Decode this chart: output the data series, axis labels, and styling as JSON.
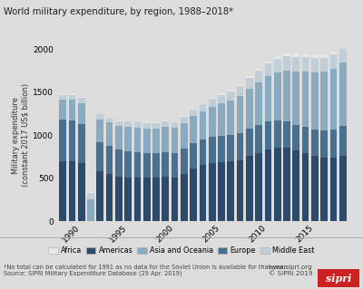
{
  "title": "World military expenditure, by region, 1988–2018*",
  "ylabel": "Military expenditure\n(constant 2017 US$ billion)",
  "background_color": "#dcdcdc",
  "plot_bg_color": "#dcdcdc",
  "footer_note": "*No total can be calculated for 1991 as no data for the Soviet Union is available for that year\nSource: SIPRI Military Expenditure Database (29 Apr. 2019)",
  "footer_right": "www.sipri.org\n© SIPRI 2019",
  "years": [
    1988,
    1989,
    1990,
    1991,
    1992,
    1993,
    1994,
    1995,
    1996,
    1997,
    1998,
    1999,
    2000,
    2001,
    2002,
    2003,
    2004,
    2005,
    2006,
    2007,
    2008,
    2009,
    2010,
    2011,
    2012,
    2013,
    2014,
    2015,
    2016,
    2017,
    2018
  ],
  "regions": [
    "Americas",
    "Europe",
    "Asia and Oceania",
    "Middle East",
    "Africa"
  ],
  "colors": [
    "#2e4a6b",
    "#4a7090",
    "#8aaabf",
    "#c0ced8",
    "#e8e8e6"
  ],
  "data": {
    "Americas": [
      700,
      695,
      670,
      0,
      580,
      550,
      520,
      510,
      505,
      505,
      510,
      520,
      510,
      550,
      615,
      655,
      680,
      685,
      695,
      705,
      755,
      795,
      835,
      855,
      855,
      820,
      790,
      755,
      740,
      740,
      760
    ],
    "Europe": [
      480,
      475,
      455,
      0,
      340,
      330,
      315,
      305,
      295,
      285,
      280,
      282,
      280,
      290,
      292,
      296,
      300,
      305,
      308,
      315,
      318,
      322,
      320,
      310,
      306,
      300,
      302,
      310,
      318,
      328,
      345
    ],
    "Asia and Oceania": [
      230,
      238,
      248,
      258,
      262,
      264,
      268,
      278,
      283,
      283,
      284,
      289,
      293,
      302,
      313,
      328,
      352,
      378,
      402,
      432,
      462,
      492,
      528,
      562,
      592,
      618,
      642,
      662,
      676,
      702,
      736
    ],
    "Middle East": [
      52,
      57,
      62,
      67,
      57,
      57,
      59,
      62,
      63,
      64,
      64,
      65,
      68,
      71,
      75,
      80,
      88,
      96,
      106,
      118,
      128,
      138,
      148,
      158,
      168,
      172,
      172,
      172,
      167,
      165,
      167
    ],
    "Africa": [
      9,
      9,
      10,
      9,
      9,
      9,
      9,
      8,
      8,
      8,
      9,
      9,
      10,
      11,
      12,
      13,
      15,
      17,
      19,
      21,
      23,
      25,
      27,
      29,
      32,
      35,
      37,
      36,
      35,
      36,
      39
    ]
  },
  "ylim": [
    0,
    2000
  ],
  "yticks": [
    0,
    500,
    1000,
    1500,
    2000
  ],
  "xticks": [
    1990,
    1995,
    2000,
    2005,
    2010,
    2015
  ],
  "legend_regions": [
    "Africa",
    "Americas",
    "Asia and Oceania",
    "Europe",
    "Middle East"
  ],
  "legend_colors": [
    "#e8e8e6",
    "#2e4a6b",
    "#8aaabf",
    "#4a7090",
    "#c0ced8"
  ]
}
